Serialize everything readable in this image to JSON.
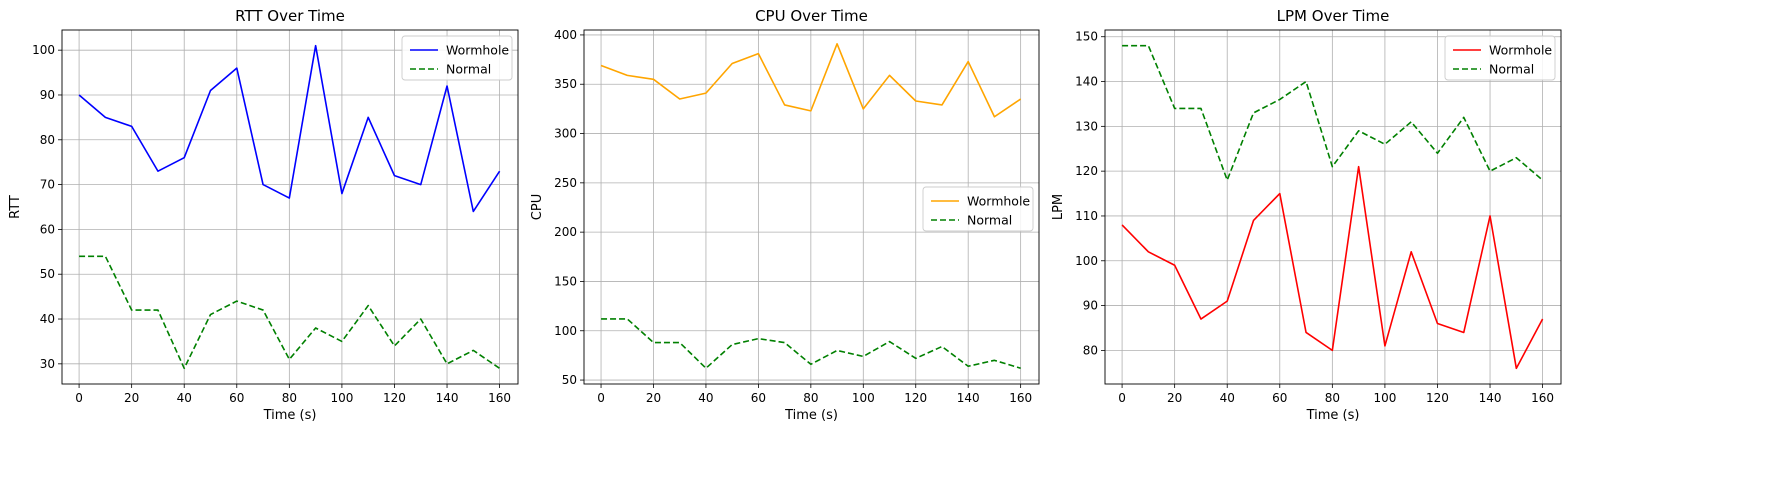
{
  "chart_data": [
    {
      "type": "line",
      "title": "RTT Over Time",
      "xlabel": "Time (s)",
      "ylabel": "RTT",
      "x": [
        0,
        10,
        20,
        30,
        40,
        50,
        60,
        70,
        80,
        90,
        100,
        110,
        120,
        130,
        140,
        150,
        160
      ],
      "xlim": [
        -6.5,
        167
      ],
      "ylim": [
        25.5,
        104.5
      ],
      "xticks": [
        0,
        20,
        40,
        60,
        80,
        100,
        120,
        140,
        160
      ],
      "yticks": [
        30,
        40,
        50,
        60,
        70,
        80,
        90,
        100
      ],
      "grid": true,
      "legend": "upper right",
      "series": [
        {
          "name": "Wormhole",
          "color": "#0000ff",
          "style": "solid",
          "values": [
            90,
            85,
            83,
            73,
            76,
            91,
            96,
            70,
            67,
            101,
            68,
            85,
            72,
            70,
            92,
            64,
            73
          ]
        },
        {
          "name": "Normal",
          "color": "#008000",
          "style": "dashed",
          "values": [
            54,
            54,
            42,
            42,
            29,
            41,
            44,
            42,
            31,
            38,
            35,
            43,
            34,
            40,
            30,
            33,
            29
          ]
        }
      ]
    },
    {
      "type": "line",
      "title": "CPU Over Time",
      "xlabel": "Time (s)",
      "ylabel": "CPU",
      "x": [
        0,
        10,
        20,
        30,
        40,
        50,
        60,
        70,
        80,
        90,
        100,
        110,
        120,
        130,
        140,
        150,
        160
      ],
      "xlim": [
        -6.5,
        167
      ],
      "ylim": [
        46,
        405
      ],
      "xticks": [
        0,
        20,
        40,
        60,
        80,
        100,
        120,
        140,
        160
      ],
      "yticks": [
        50,
        100,
        150,
        200,
        250,
        300,
        350,
        400
      ],
      "grid": true,
      "legend": "center right",
      "series": [
        {
          "name": "Wormhole",
          "color": "#ffa500",
          "style": "solid",
          "values": [
            369,
            359,
            355,
            335,
            341,
            371,
            381,
            329,
            323,
            391,
            325,
            359,
            333,
            329,
            373,
            317,
            335
          ]
        },
        {
          "name": "Normal",
          "color": "#008000",
          "style": "dashed",
          "values": [
            112,
            112,
            88,
            88,
            62,
            86,
            92,
            88,
            66,
            80,
            74,
            89,
            72,
            84,
            64,
            70,
            62
          ]
        }
      ]
    },
    {
      "type": "line",
      "title": "LPM Over Time",
      "xlabel": "Time (s)",
      "ylabel": "LPM",
      "x": [
        0,
        10,
        20,
        30,
        40,
        50,
        60,
        70,
        80,
        90,
        100,
        110,
        120,
        130,
        140,
        150,
        160
      ],
      "xlim": [
        -6.5,
        167
      ],
      "ylim": [
        72.5,
        151.5
      ],
      "xticks": [
        0,
        20,
        40,
        60,
        80,
        100,
        120,
        140,
        160
      ],
      "yticks": [
        80,
        90,
        100,
        110,
        120,
        130,
        140,
        150
      ],
      "grid": true,
      "legend": "upper right",
      "series": [
        {
          "name": "Wormhole",
          "color": "#ff0000",
          "style": "solid",
          "values": [
            108,
            102,
            99,
            87,
            91,
            109,
            115,
            84,
            80,
            121,
            81,
            102,
            86,
            84,
            110,
            76,
            87
          ]
        },
        {
          "name": "Normal",
          "color": "#008000",
          "style": "dashed",
          "values": [
            148,
            148,
            134,
            134,
            118,
            133,
            136,
            140,
            121,
            129,
            126,
            131,
            124,
            132,
            120,
            123,
            118
          ]
        }
      ]
    }
  ]
}
